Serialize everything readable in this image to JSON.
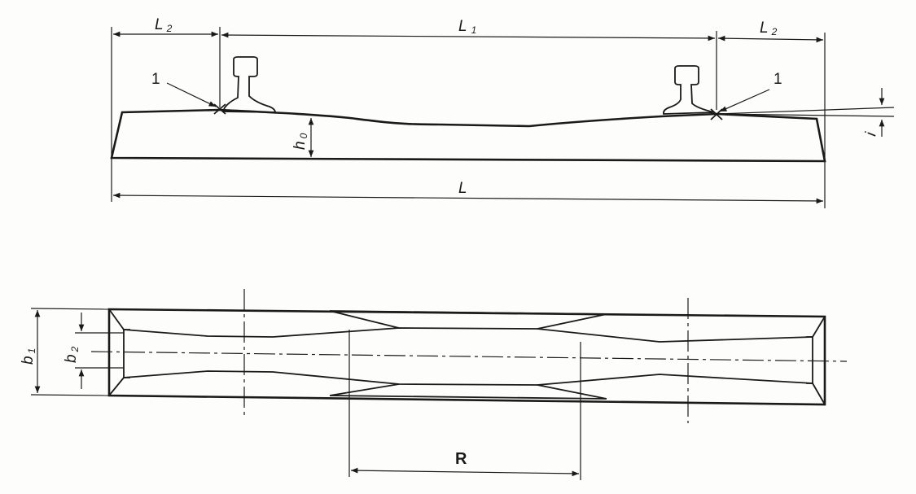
{
  "side_view": {
    "dim_L2_left": "L",
    "dim_L2_left_sub": "2",
    "dim_L1": "L",
    "dim_L1_sub": "1",
    "dim_L2_right": "L",
    "dim_L2_right_sub": "2",
    "dim_L": "L",
    "dim_h0": "h",
    "dim_h0_sub": "0",
    "dim_i": "i",
    "callout_left": "1",
    "callout_right": "1"
  },
  "plan_view": {
    "dim_b1": "b",
    "dim_b1_sub": "1",
    "dim_b2": "b",
    "dim_b2_sub": "2",
    "dim_R": "R"
  }
}
